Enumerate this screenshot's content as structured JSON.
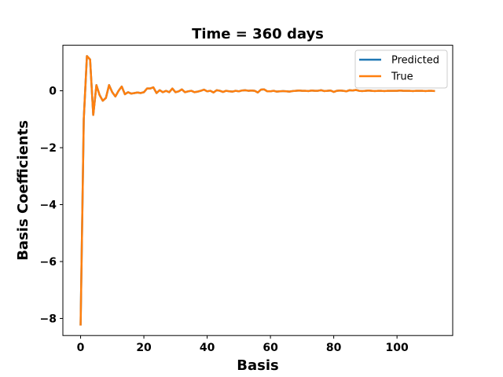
{
  "chart_data": {
    "type": "line",
    "title": "Time = 360 days",
    "xlabel": "Basis",
    "ylabel": "Basis Coefficients",
    "xlim": [
      -5.6,
      117.6
    ],
    "ylim": [
      -8.6,
      1.6
    ],
    "xticks": [
      0,
      20,
      40,
      60,
      80,
      100
    ],
    "xtick_labels": [
      "0",
      "20",
      "40",
      "60",
      "80",
      "100"
    ],
    "yticks": [
      -8,
      -6,
      -4,
      -2,
      0
    ],
    "ytick_labels": [
      "−8",
      "−6",
      "−4",
      "−2",
      "0"
    ],
    "grid": false,
    "legend_position": "top-right",
    "series": [
      {
        "name": "Predicted",
        "color": "#1f77b4",
        "x": [
          0,
          1,
          2,
          3,
          4,
          5,
          6,
          7,
          8,
          9,
          10,
          11,
          12,
          13,
          14,
          15,
          16,
          17,
          18,
          19,
          20,
          21,
          22,
          23,
          24,
          25,
          26,
          27,
          28,
          29,
          30,
          31,
          32,
          33,
          34,
          35,
          36,
          37,
          38,
          39,
          40,
          41,
          42,
          43,
          44,
          45,
          46,
          47,
          48,
          49,
          50,
          51,
          52,
          53,
          54,
          55,
          56,
          57,
          58,
          59,
          60,
          61,
          62,
          63,
          64,
          65,
          66,
          67,
          68,
          69,
          70,
          71,
          72,
          73,
          74,
          75,
          76,
          77,
          78,
          79,
          80,
          81,
          82,
          83,
          84,
          85,
          86,
          87,
          88,
          89,
          90,
          91,
          92,
          93,
          94,
          95,
          96,
          97,
          98,
          99,
          100,
          101,
          102,
          103,
          104,
          105,
          106,
          107,
          108,
          109,
          110,
          111,
          112
        ],
        "y": [
          -8.25,
          -1.0,
          1.22,
          1.1,
          -0.85,
          0.2,
          -0.15,
          -0.35,
          -0.25,
          0.2,
          -0.05,
          -0.2,
          0.0,
          0.15,
          -0.12,
          -0.05,
          -0.1,
          -0.08,
          -0.06,
          -0.08,
          -0.05,
          0.08,
          0.08,
          0.12,
          -0.08,
          0.02,
          -0.05,
          0.0,
          -0.05,
          0.08,
          -0.05,
          -0.02,
          0.05,
          -0.05,
          -0.02,
          0.0,
          -0.05,
          -0.03,
          0.0,
          0.04,
          -0.02,
          0.0,
          -0.06,
          0.02,
          0.0,
          -0.04,
          0.0,
          -0.02,
          -0.03,
          0.0,
          -0.02,
          0.01,
          0.02,
          0.0,
          0.01,
          0.0,
          -0.06,
          0.04,
          0.05,
          -0.02,
          -0.02,
          0.0,
          -0.03,
          -0.02,
          -0.01,
          -0.02,
          -0.03,
          -0.01,
          0.0,
          0.01,
          0.0,
          0.0,
          -0.01,
          0.01,
          0.0,
          0.0,
          0.02,
          -0.01,
          0.0,
          0.01,
          -0.04,
          0.0,
          0.01,
          0.0,
          -0.02,
          0.02,
          0.01,
          0.03,
          0.0,
          -0.01,
          0.0,
          0.01,
          0.0,
          -0.01,
          0.0,
          0.0,
          -0.01,
          0.0,
          0.0,
          0.0,
          0.0,
          0.01,
          0.0,
          0.0,
          0.0,
          -0.01,
          0.0,
          0.0,
          0.0,
          -0.01,
          0.0,
          0.0,
          -0.01
        ]
      },
      {
        "name": "True",
        "color": "#ff7f0e",
        "x": [
          0,
          1,
          2,
          3,
          4,
          5,
          6,
          7,
          8,
          9,
          10,
          11,
          12,
          13,
          14,
          15,
          16,
          17,
          18,
          19,
          20,
          21,
          22,
          23,
          24,
          25,
          26,
          27,
          28,
          29,
          30,
          31,
          32,
          33,
          34,
          35,
          36,
          37,
          38,
          39,
          40,
          41,
          42,
          43,
          44,
          45,
          46,
          47,
          48,
          49,
          50,
          51,
          52,
          53,
          54,
          55,
          56,
          57,
          58,
          59,
          60,
          61,
          62,
          63,
          64,
          65,
          66,
          67,
          68,
          69,
          70,
          71,
          72,
          73,
          74,
          75,
          76,
          77,
          78,
          79,
          80,
          81,
          82,
          83,
          84,
          85,
          86,
          87,
          88,
          89,
          90,
          91,
          92,
          93,
          94,
          95,
          96,
          97,
          98,
          99,
          100,
          101,
          102,
          103,
          104,
          105,
          106,
          107,
          108,
          109,
          110,
          111,
          112
        ],
        "y": [
          -8.25,
          -1.0,
          1.22,
          1.1,
          -0.85,
          0.2,
          -0.15,
          -0.35,
          -0.25,
          0.2,
          -0.05,
          -0.2,
          0.0,
          0.15,
          -0.12,
          -0.05,
          -0.1,
          -0.08,
          -0.06,
          -0.08,
          -0.05,
          0.08,
          0.08,
          0.12,
          -0.08,
          0.02,
          -0.05,
          0.0,
          -0.05,
          0.08,
          -0.05,
          -0.02,
          0.05,
          -0.05,
          -0.02,
          0.0,
          -0.05,
          -0.03,
          0.0,
          0.04,
          -0.02,
          0.0,
          -0.06,
          0.02,
          0.0,
          -0.04,
          0.0,
          -0.02,
          -0.03,
          0.0,
          -0.02,
          0.01,
          0.02,
          0.0,
          0.01,
          0.0,
          -0.06,
          0.04,
          0.05,
          -0.02,
          -0.02,
          0.0,
          -0.03,
          -0.02,
          -0.01,
          -0.02,
          -0.03,
          -0.01,
          0.0,
          0.01,
          0.0,
          0.0,
          -0.01,
          0.01,
          0.0,
          0.0,
          0.02,
          -0.01,
          0.0,
          0.01,
          -0.04,
          0.0,
          0.01,
          0.0,
          -0.02,
          0.02,
          0.01,
          0.03,
          0.0,
          -0.01,
          0.0,
          0.01,
          0.0,
          -0.01,
          0.0,
          0.0,
          -0.01,
          0.0,
          0.0,
          0.0,
          0.0,
          0.01,
          0.0,
          0.0,
          0.0,
          -0.01,
          0.0,
          0.0,
          0.0,
          -0.01,
          0.0,
          0.0,
          -0.01
        ]
      }
    ]
  }
}
